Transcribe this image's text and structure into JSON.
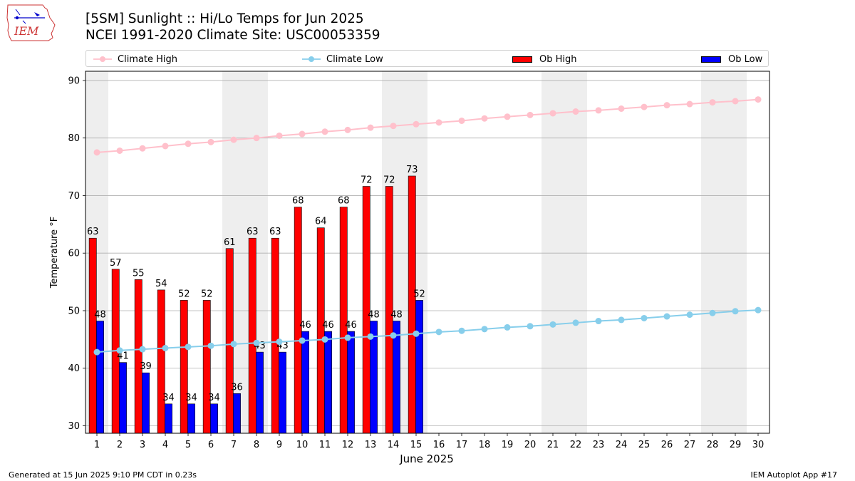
{
  "header": {
    "title_line1": "[5SM] Sunlight :: Hi/Lo Temps for Jun 2025",
    "title_line2": "NCEI 1991-2020 Climate Site: USC00053359",
    "logo_text": "IEM"
  },
  "legend": [
    {
      "label": "Climate High",
      "color": "#ffc0cb",
      "kind": "line"
    },
    {
      "label": "Climate Low",
      "color": "#87ceeb",
      "kind": "line"
    },
    {
      "label": "Ob High",
      "color": "#ff0000",
      "kind": "bar"
    },
    {
      "label": "Ob Low",
      "color": "#0000ff",
      "kind": "bar"
    }
  ],
  "footer": {
    "left": "Generated at 15 Jun 2025 9:10 PM CDT in 0.23s",
    "right": "IEM Autoplot App #17"
  },
  "chart_data": {
    "type": "bar",
    "xlabel": "June 2025",
    "ylabel": "Temperature °F",
    "ylim": [
      28.7,
      91.6
    ],
    "yticks": [
      30,
      40,
      50,
      60,
      70,
      80,
      90
    ],
    "xlim": [
      0.5,
      30.5
    ],
    "days": [
      1,
      2,
      3,
      4,
      5,
      6,
      7,
      8,
      9,
      10,
      11,
      12,
      13,
      14,
      15,
      16,
      17,
      18,
      19,
      20,
      21,
      22,
      23,
      24,
      25,
      26,
      27,
      28,
      29,
      30
    ],
    "weekend_shading": [
      [
        0.5,
        1.5
      ],
      [
        6.5,
        8.5
      ],
      [
        13.5,
        15.5
      ],
      [
        20.5,
        22.5
      ],
      [
        27.5,
        29.5
      ]
    ],
    "grid": "horizontal",
    "series": [
      {
        "name": "Ob High",
        "kind": "bar",
        "color": "#ff0000",
        "values": [
          62.6,
          57.2,
          55.4,
          53.6,
          51.8,
          51.8,
          60.8,
          62.6,
          62.6,
          68.0,
          64.4,
          68.0,
          71.6,
          71.6,
          73.4
        ],
        "labels": [
          "63",
          "57",
          "55",
          "54",
          "52",
          "52",
          "61",
          "63",
          "63",
          "68",
          "64",
          "68",
          "72",
          "72",
          "73"
        ]
      },
      {
        "name": "Ob Low",
        "kind": "bar",
        "color": "#0000ff",
        "values": [
          48.2,
          41.0,
          39.2,
          33.8,
          33.8,
          33.8,
          35.6,
          42.8,
          42.8,
          46.4,
          46.4,
          46.4,
          48.2,
          48.2,
          51.8
        ],
        "labels": [
          "48",
          "41",
          "39",
          "34",
          "34",
          "34",
          "36",
          "43",
          "43",
          "46",
          "46",
          "46",
          "48",
          "48",
          "52"
        ]
      },
      {
        "name": "Climate High",
        "kind": "line",
        "color": "#ffc0cb",
        "values": [
          77.5,
          77.8,
          78.2,
          78.6,
          79.0,
          79.3,
          79.7,
          80.0,
          80.4,
          80.7,
          81.1,
          81.4,
          81.8,
          82.1,
          82.4,
          82.7,
          83.0,
          83.4,
          83.7,
          84.0,
          84.3,
          84.6,
          84.8,
          85.1,
          85.4,
          85.7,
          85.9,
          86.2,
          86.4,
          86.7
        ]
      },
      {
        "name": "Climate Low",
        "kind": "line",
        "color": "#87ceeb",
        "values": [
          42.8,
          43.1,
          43.3,
          43.5,
          43.7,
          43.9,
          44.2,
          44.4,
          44.6,
          44.8,
          45.0,
          45.3,
          45.5,
          45.7,
          46.0,
          46.3,
          46.5,
          46.8,
          47.1,
          47.3,
          47.6,
          47.9,
          48.2,
          48.4,
          48.7,
          49.0,
          49.3,
          49.6,
          49.9,
          50.1
        ]
      }
    ]
  }
}
